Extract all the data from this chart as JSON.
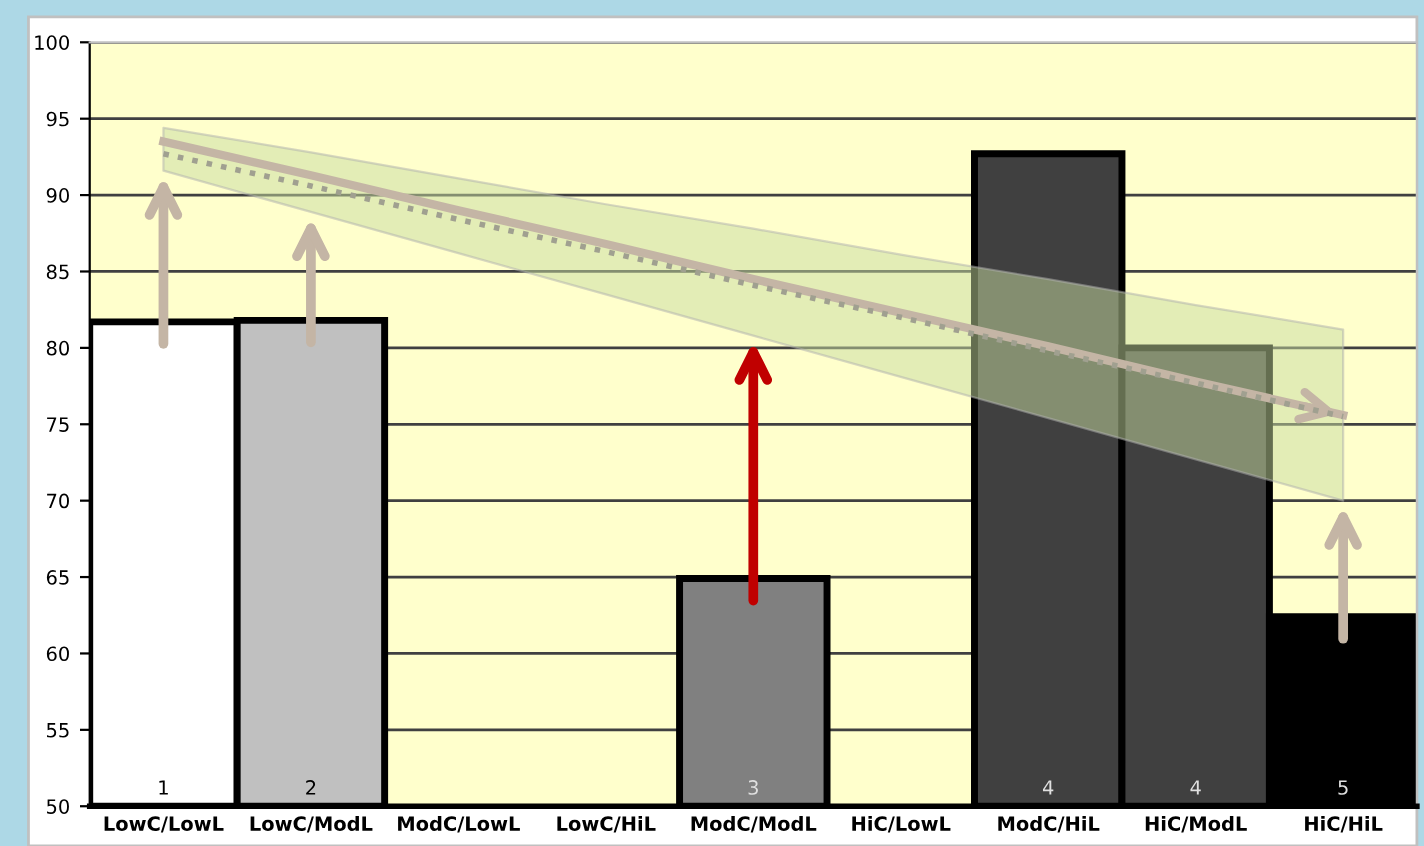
{
  "chart_data": {
    "type": "bar",
    "categories": [
      "LowC/LowL",
      "LowC/ModL",
      "ModC/LowL",
      "LowC/HiL",
      "ModC/ModL",
      "HiC/LowL",
      "ModC/HiL",
      "HiC/ModL",
      "HiC/HiL"
    ],
    "series": [
      {
        "values": [
          81.7,
          81.8,
          null,
          null,
          64.9,
          null,
          92.7,
          80.0,
          62.4
        ],
        "colors": [
          "#ffffff",
          "#c0c0c0",
          "#808080",
          "#808080",
          "#808080",
          "#404040",
          "#404040",
          "#404040",
          "#000000"
        ]
      },
      {
        "type": "line",
        "color": "#c4b5a5",
        "line_style": "solid",
        "values": [
          93.5,
          91.3,
          89.0,
          86.8,
          84.5,
          82.3,
          80.1,
          77.8,
          75.6
        ],
        "lower": [
          91.6,
          88.9,
          86.2,
          83.5,
          80.8,
          78.1,
          75.4,
          72.7,
          70.0
        ],
        "upper": [
          94.4,
          92.8,
          91.1,
          89.4,
          87.8,
          86.1,
          84.5,
          82.8,
          81.2
        ]
      },
      {
        "type": "line",
        "color": "#a0a090",
        "line_style": "dotted",
        "values": [
          92.7,
          90.6,
          88.4,
          86.3,
          84.1,
          82.0,
          79.8,
          77.7,
          75.5
        ]
      }
    ],
    "annotations": [
      "1",
      "2",
      "3",
      "4",
      "4",
      "5"
    ],
    "ylim": [
      50,
      100
    ],
    "yticks": [
      50,
      55,
      60,
      65,
      70,
      75,
      80,
      85,
      90,
      95,
      100
    ],
    "grid": "y"
  }
}
